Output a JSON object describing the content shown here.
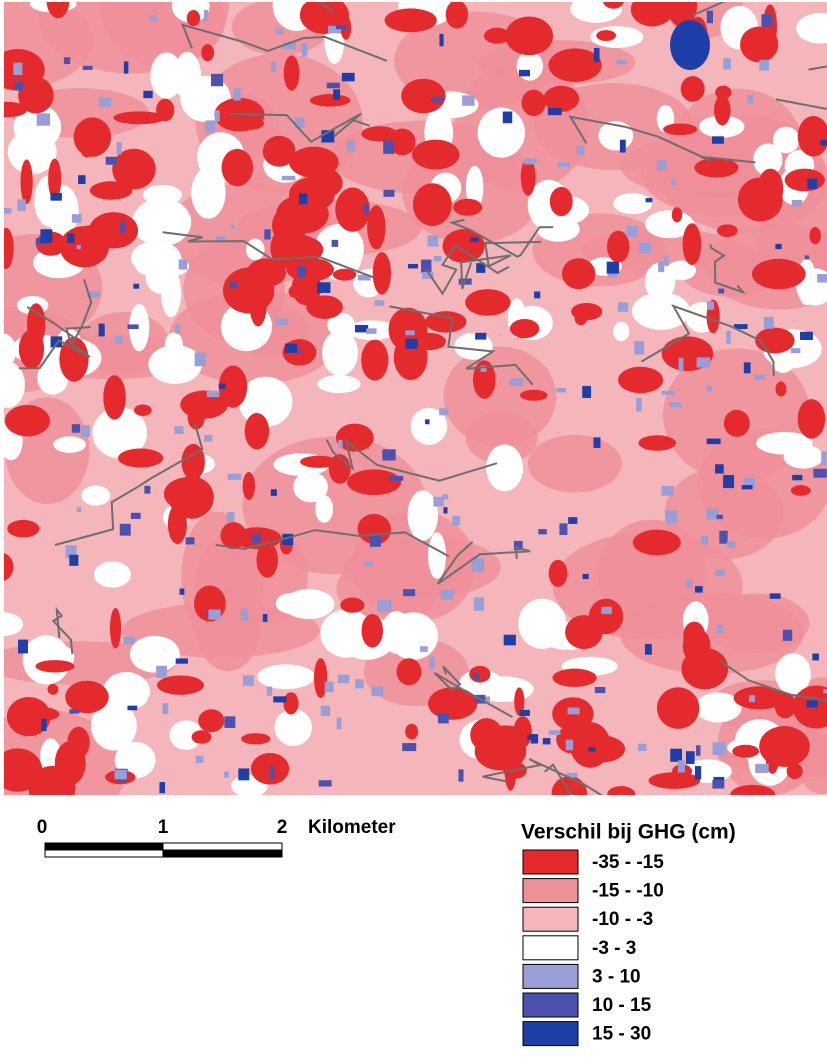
{
  "scale_bar": {
    "ticks": [
      "0",
      "1",
      "2"
    ],
    "unit": "Kilometer"
  },
  "legend": {
    "title": "Verschil bij GHG (cm)",
    "items": [
      {
        "label": "-35 - -15",
        "color": "#e52a2e"
      },
      {
        "label": "-15 - -10",
        "color": "#ef8f98"
      },
      {
        "label": "-10 - -3",
        "color": "#f5b6bb"
      },
      {
        "label": "-3 - 3",
        "color": "#ffffff"
      },
      {
        "label": "3 - 10",
        "color": "#9a9ed6"
      },
      {
        "label": "10 - 15",
        "color": "#4a52ae"
      },
      {
        "label": "15 - 30",
        "color": "#1f3fa8"
      }
    ]
  }
}
